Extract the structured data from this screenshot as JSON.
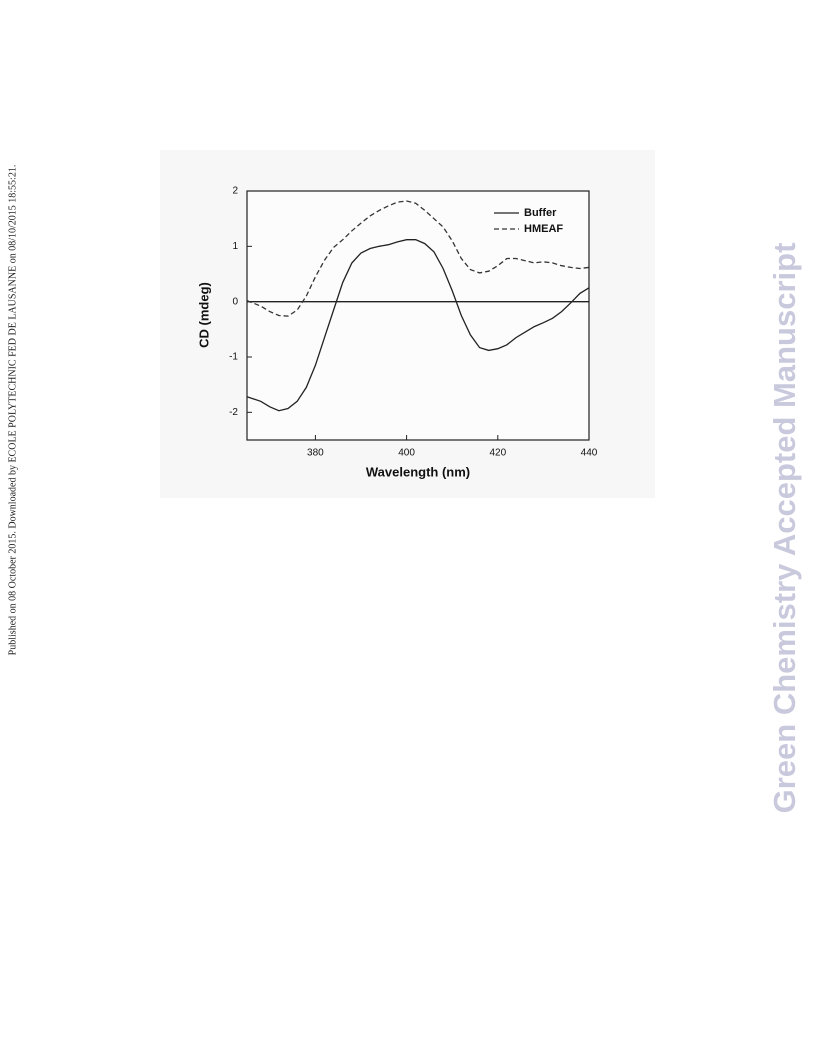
{
  "side_note": "Published on 08 October 2015. Downloaded by ECOLE POLYTECHNIC FED DE LAUSANNE on 08/10/2015 18:55:21.",
  "watermark": "Green Chemistry Accepted Manuscript",
  "chart_data": {
    "type": "line",
    "xlabel": "Wavelength (nm)",
    "ylabel": "CD (mdeg)",
    "x": [
      365,
      368,
      370,
      372,
      374,
      376,
      378,
      380,
      382,
      384,
      386,
      388,
      390,
      392,
      394,
      396,
      398,
      400,
      402,
      404,
      406,
      408,
      410,
      412,
      414,
      416,
      418,
      420,
      422,
      424,
      426,
      428,
      430,
      432,
      434,
      436,
      438,
      440
    ],
    "series": [
      {
        "name": "Buffer",
        "color": "#222222",
        "line_style": "solid",
        "values": [
          -1.72,
          -1.8,
          -1.9,
          -1.97,
          -1.93,
          -1.8,
          -1.55,
          -1.15,
          -0.65,
          -0.15,
          0.35,
          0.7,
          0.88,
          0.96,
          1.0,
          1.03,
          1.08,
          1.12,
          1.12,
          1.05,
          0.9,
          0.6,
          0.2,
          -0.25,
          -0.6,
          -0.83,
          -0.88,
          -0.85,
          -0.78,
          -0.65,
          -0.55,
          -0.45,
          -0.38,
          -0.3,
          -0.18,
          -0.02,
          0.15,
          0.25
        ]
      },
      {
        "name": "HMEAF",
        "color": "#333333",
        "line_style": "dashed",
        "values": [
          0.02,
          -0.08,
          -0.18,
          -0.25,
          -0.26,
          -0.15,
          0.1,
          0.45,
          0.75,
          0.98,
          1.12,
          1.28,
          1.42,
          1.55,
          1.65,
          1.73,
          1.8,
          1.82,
          1.78,
          1.65,
          1.5,
          1.35,
          1.1,
          0.78,
          0.58,
          0.52,
          0.55,
          0.65,
          0.78,
          0.78,
          0.74,
          0.7,
          0.72,
          0.7,
          0.65,
          0.62,
          0.6,
          0.62
        ]
      }
    ],
    "xlim": [
      365,
      440
    ],
    "ylim": [
      -2.5,
      2
    ],
    "xticks": [
      380,
      400,
      420,
      440
    ],
    "yticks": [
      -2,
      -1,
      0,
      1,
      2
    ],
    "zero_line": true,
    "grid": false,
    "legend": "upper right"
  }
}
